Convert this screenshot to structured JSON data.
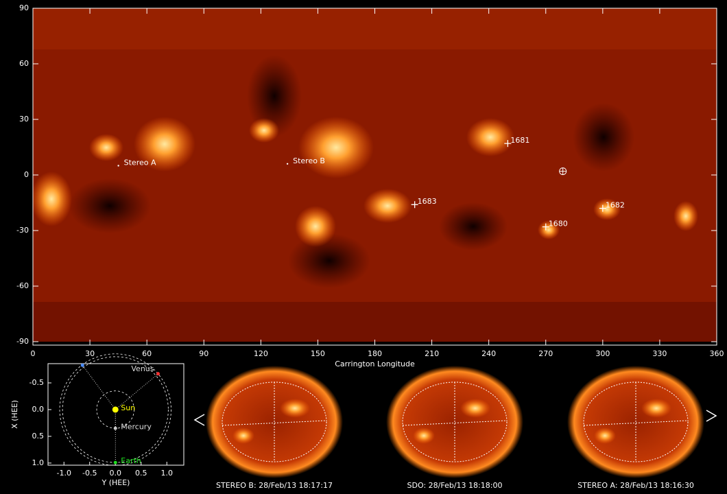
{
  "chart_data": [
    {
      "type": "map",
      "xlabel": "Carrington Longitude",
      "xlim": [
        0,
        360
      ],
      "xticks": [
        0,
        30,
        60,
        90,
        120,
        150,
        180,
        210,
        240,
        270,
        300,
        330,
        360
      ],
      "ylim": [
        -90,
        90
      ],
      "yticks": [
        -90,
        -60,
        -30,
        0,
        30,
        60,
        90
      ],
      "markers": [
        {
          "label": "Stereo A",
          "symbol": "dot",
          "x": 45,
          "y": 5
        },
        {
          "label": "Stereo B",
          "symbol": "dot",
          "x": 134,
          "y": 6
        },
        {
          "label": "1681",
          "symbol": "plus",
          "x": 250,
          "y": 17
        },
        {
          "label": "1683",
          "symbol": "plus",
          "x": 201,
          "y": -16
        },
        {
          "label": "1680",
          "symbol": "plus",
          "x": 270,
          "y": -28
        },
        {
          "label": "1682",
          "symbol": "plus",
          "x": 300,
          "y": -18
        },
        {
          "label": null,
          "symbol": "earth",
          "x": 279,
          "y": 2
        }
      ]
    },
    {
      "type": "scatter",
      "xlabel": "Y (HEE)",
      "ylabel": "X (HEE)",
      "xlim": [
        -1.31,
        1.33
      ],
      "xticks": [
        {
          "value": -1,
          "label": "-1.0"
        },
        -0.5,
        {
          "value": 0,
          "label": "0.0"
        },
        0.5,
        {
          "value": 1,
          "label": "1.0"
        }
      ],
      "ylim": [
        -0.86,
        1.04
      ],
      "y_inverted": true,
      "yticks": [
        -0.5,
        {
          "value": 0,
          "label": "0.0"
        },
        0.5,
        {
          "value": 1,
          "label": "1.0"
        }
      ],
      "points": [
        {
          "name": "Sun",
          "color": "#ffff00",
          "x": 0,
          "y": 0
        },
        {
          "name": "Venus",
          "color": "#ff3030",
          "x": 0.83,
          "y": -0.67
        },
        {
          "name": "Mercury",
          "color": "#c8c8c8",
          "x": 0,
          "y": 0.35
        },
        {
          "name": "Earth",
          "color": "#20e020",
          "x": 0,
          "y": 0.99
        },
        {
          "name": null,
          "color": "#4a8cff",
          "x": -0.64,
          "y": -0.83
        }
      ]
    }
  ],
  "views": [
    {
      "caption": "STEREO B: 28/Feb/13 18:17:17"
    },
    {
      "caption": "SDO: 28/Feb/13 18:18:00"
    },
    {
      "caption": "STEREO A: 28/Feb/13 18:16:30"
    }
  ]
}
